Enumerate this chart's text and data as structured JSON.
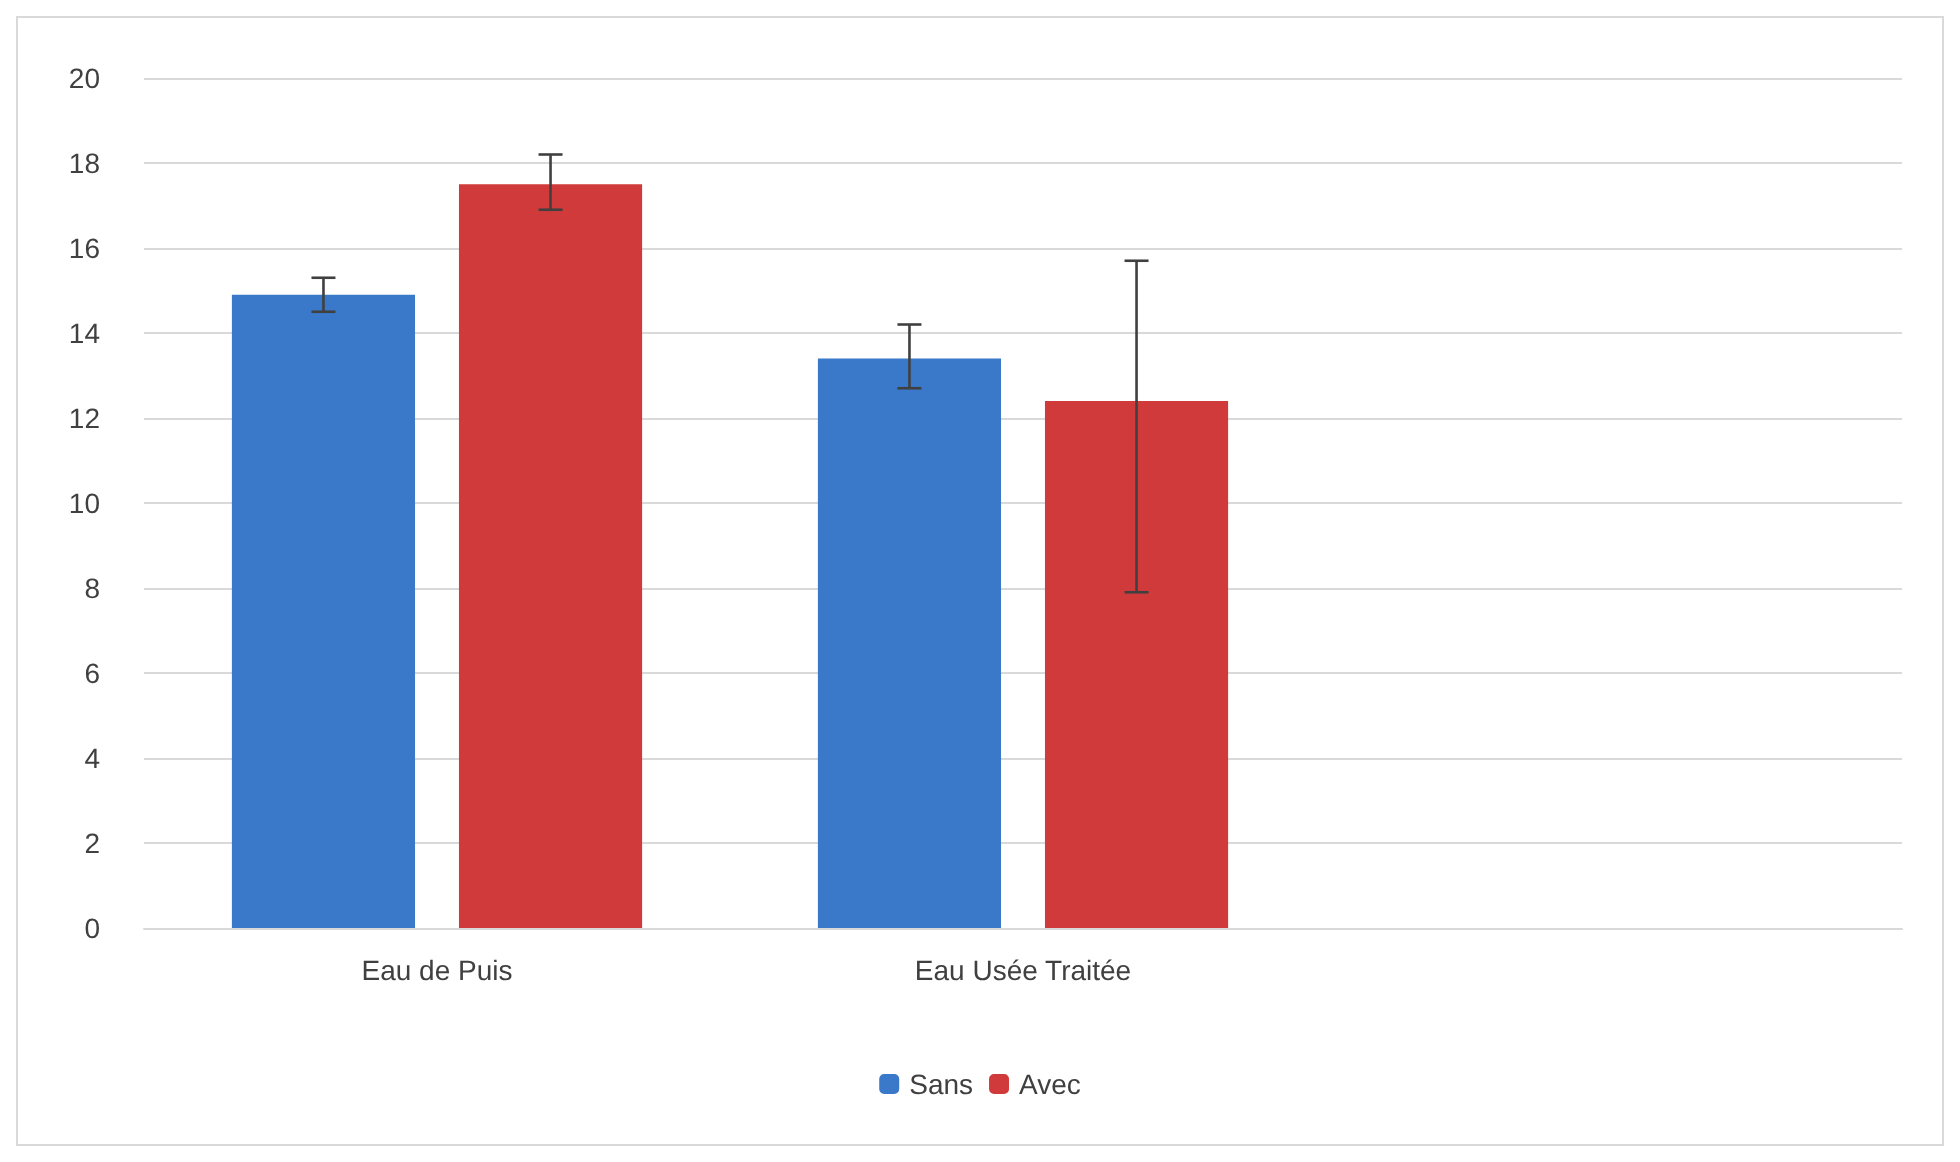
{
  "chart_data": {
    "type": "bar",
    "categories": [
      "Eau de Puis",
      "Eau Usée Traitée",
      null
    ],
    "series": [
      {
        "name": "Sans",
        "color": "#3a78c9",
        "values": [
          14.9,
          13.4,
          null
        ],
        "errors": [
          [
            14.5,
            15.3
          ],
          [
            12.7,
            14.2
          ],
          null
        ]
      },
      {
        "name": "Avec",
        "color": "#d13a3a",
        "values": [
          17.5,
          12.4,
          null
        ],
        "errors": [
          [
            16.9,
            18.2
          ],
          [
            7.9,
            15.7
          ],
          null
        ]
      }
    ],
    "ylim": [
      0,
      20
    ],
    "yticks": [
      0,
      2,
      4,
      6,
      8,
      10,
      12,
      14,
      16,
      18,
      20
    ],
    "grid": "y",
    "legend": "bottom"
  }
}
